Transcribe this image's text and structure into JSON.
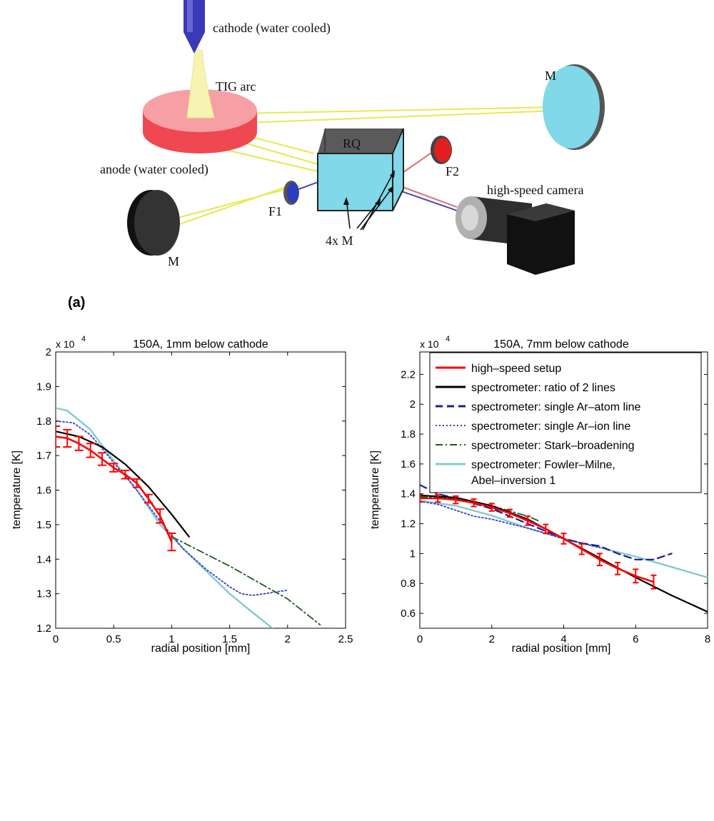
{
  "schematic": {
    "labels": {
      "cathode": "cathode (water cooled)",
      "tig_arc": "TIG arc",
      "anode": "anode (water cooled)",
      "rq": "RQ",
      "f1": "F1",
      "f2": "F2",
      "m_left": "M",
      "m_right": "M",
      "mirrors": "4x M",
      "camera": "high-speed camera"
    },
    "panel_label": "(a)"
  },
  "colors": {
    "high_speed": "#ff0000",
    "ratio": "#000000",
    "atom": "#1c1c8c",
    "ion": "#3a3ad0",
    "stark": "#1f5a1f",
    "fowler": "#80cccc",
    "anode": "#f04850",
    "cube": "#80d8e8",
    "beam_yellow": "#e8e850",
    "filter_blue": "#2a3cc0",
    "filter_red": "#e02020"
  },
  "chart_data": [
    {
      "type": "line",
      "title": "150A, 1mm below cathode",
      "xlabel": "radial position [mm]",
      "ylabel": "temperature [K]",
      "y_multiplier": "x 10",
      "y_multiplier_exp": "4",
      "xlim": [
        0,
        2.5
      ],
      "ylim": [
        1.2,
        2.0
      ],
      "xticks": [
        0,
        0.5,
        1,
        1.5,
        2,
        2.5
      ],
      "xtick_labels": [
        "0",
        "0.5",
        "1",
        "1.5",
        "2",
        "2.5"
      ],
      "yticks": [
        1.2,
        1.3,
        1.4,
        1.5,
        1.6,
        1.7,
        1.8,
        1.9,
        2.0
      ],
      "ytick_labels": [
        "1.2",
        "1.3",
        "1.4",
        "1.5",
        "1.6",
        "1.7",
        "1.8",
        "1.9",
        "2"
      ],
      "grid": false,
      "series": [
        {
          "key": "high_speed",
          "style": "solid",
          "width": 2.6,
          "x": [
            0,
            0.1,
            0.2,
            0.3,
            0.4,
            0.5,
            0.6,
            0.7,
            0.8,
            0.9,
            1.0
          ],
          "y": [
            1.755,
            1.75,
            1.735,
            1.715,
            1.69,
            1.665,
            1.645,
            1.62,
            1.575,
            1.525,
            1.45
          ],
          "err": [
            0.03,
            0.025,
            0.02,
            0.02,
            0.018,
            0.012,
            0.012,
            0.012,
            0.012,
            0.02,
            0.025
          ]
        },
        {
          "key": "ratio",
          "style": "solid",
          "width": 2.2,
          "x": [
            0,
            0.2,
            0.4,
            0.6,
            0.8,
            1.0,
            1.15
          ],
          "y": [
            1.77,
            1.755,
            1.725,
            1.675,
            1.61,
            1.53,
            1.465
          ]
        },
        {
          "key": "ion",
          "style": "dotted",
          "width": 1.8,
          "x": [
            0,
            0.15,
            0.3,
            0.5,
            0.7,
            0.9,
            1.1,
            1.3,
            1.5,
            1.6,
            1.7,
            1.8,
            1.9,
            2.0
          ],
          "y": [
            1.8,
            1.795,
            1.76,
            1.68,
            1.6,
            1.51,
            1.43,
            1.37,
            1.32,
            1.3,
            1.295,
            1.3,
            1.305,
            1.31
          ]
        },
        {
          "key": "stark",
          "style": "dashdot",
          "width": 1.8,
          "x": [
            1.0,
            1.5,
            2.0,
            2.28
          ],
          "y": [
            1.465,
            1.38,
            1.285,
            1.21
          ]
        },
        {
          "key": "fowler",
          "style": "solid",
          "width": 2.4,
          "x": [
            0,
            0.1,
            0.3,
            0.5,
            0.7,
            0.9,
            1.1,
            1.3,
            1.5,
            1.7,
            1.87
          ],
          "y": [
            1.838,
            1.83,
            1.775,
            1.685,
            1.6,
            1.5,
            1.43,
            1.365,
            1.3,
            1.245,
            1.2
          ]
        }
      ]
    },
    {
      "type": "line",
      "title": "150A, 7mm below cathode",
      "xlabel": "radial position [mm]",
      "ylabel": "temperature [K]",
      "y_multiplier": "x 10",
      "y_multiplier_exp": "4",
      "xlim": [
        0,
        8
      ],
      "ylim": [
        0.5,
        2.35
      ],
      "xticks": [
        0,
        2,
        4,
        6,
        8
      ],
      "xtick_labels": [
        "0",
        "2",
        "4",
        "6",
        "8"
      ],
      "yticks": [
        0.6,
        0.8,
        1.0,
        1.2,
        1.4,
        1.6,
        1.8,
        2.0,
        2.2
      ],
      "ytick_labels": [
        "0.6",
        "0.8",
        "1",
        "1.2",
        "1.4",
        "1.6",
        "1.8",
        "2",
        "2.2"
      ],
      "grid": false,
      "legend_placement": "top-right",
      "legend": [
        {
          "key": "high_speed",
          "style": "solid",
          "label": "high–speed setup"
        },
        {
          "key": "ratio",
          "style": "solid",
          "label": "spectrometer: ratio of 2 lines"
        },
        {
          "key": "atom",
          "style": "dashed",
          "label": "spectrometer: single Ar–atom line"
        },
        {
          "key": "ion",
          "style": "dotted",
          "label": "spectrometer: single Ar–ion line"
        },
        {
          "key": "stark",
          "style": "dashdot",
          "label": "spectrometer: Stark–broadening"
        },
        {
          "key": "fowler",
          "style": "solid",
          "label": "spectrometer: Fowler–Milne,",
          "label2": "Abel–inversion 1"
        }
      ],
      "series": [
        {
          "key": "high_speed",
          "style": "solid",
          "width": 2.6,
          "x": [
            0,
            0.5,
            1.0,
            1.5,
            2.0,
            2.5,
            3.0,
            3.5,
            4.0,
            4.5,
            5.0,
            5.5,
            6.0,
            6.5
          ],
          "y": [
            1.37,
            1.37,
            1.36,
            1.34,
            1.31,
            1.27,
            1.22,
            1.165,
            1.1,
            1.03,
            0.96,
            0.9,
            0.85,
            0.81
          ],
          "err": [
            0.025,
            0.025,
            0.025,
            0.025,
            0.025,
            0.025,
            0.03,
            0.03,
            0.035,
            0.035,
            0.04,
            0.04,
            0.045,
            0.045
          ]
        },
        {
          "key": "ratio",
          "style": "solid",
          "width": 2.2,
          "x": [
            0,
            1,
            2,
            3,
            4,
            5,
            6,
            7,
            8
          ],
          "y": [
            1.39,
            1.375,
            1.32,
            1.23,
            1.1,
            0.97,
            0.84,
            0.72,
            0.61
          ]
        },
        {
          "key": "atom",
          "style": "dashed",
          "width": 2.2,
          "x": [
            0,
            0.5,
            1,
            2,
            3,
            4,
            4.5,
            5,
            5.5,
            6,
            6.5,
            7
          ],
          "y": [
            1.46,
            1.4,
            1.37,
            1.3,
            1.2,
            1.1,
            1.07,
            1.05,
            1.0,
            0.96,
            0.96,
            1.0
          ]
        },
        {
          "key": "ion",
          "style": "dotted",
          "width": 1.8,
          "x": [
            0,
            0.5,
            1,
            1.5,
            2,
            3,
            4,
            5
          ],
          "y": [
            1.35,
            1.33,
            1.29,
            1.25,
            1.23,
            1.17,
            1.1,
            1.04
          ]
        },
        {
          "key": "stark",
          "style": "dashdot",
          "width": 1.8,
          "x": [
            0,
            1,
            2,
            3,
            3.3
          ],
          "y": [
            1.38,
            1.37,
            1.32,
            1.25,
            1.22
          ]
        },
        {
          "key": "fowler",
          "style": "solid",
          "width": 2.4,
          "x": [
            0,
            1,
            2,
            3,
            4,
            5,
            6,
            7,
            8
          ],
          "y": [
            1.355,
            1.32,
            1.255,
            1.17,
            1.1,
            1.04,
            0.98,
            0.91,
            0.84
          ]
        }
      ]
    }
  ]
}
